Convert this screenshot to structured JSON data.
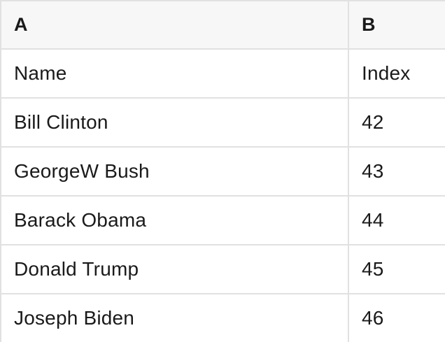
{
  "table": {
    "columns": [
      {
        "id": "A",
        "header": "A"
      },
      {
        "id": "B",
        "header": "B"
      }
    ],
    "rows": [
      [
        "Name",
        "Index"
      ],
      [
        "Bill Clinton",
        "42"
      ],
      [
        "GeorgeW Bush",
        "43"
      ],
      [
        "Barack Obama",
        "44"
      ],
      [
        "Donald Trump",
        "45"
      ],
      [
        "Joseph Biden",
        "46"
      ]
    ]
  },
  "colors": {
    "header_bg": "#f7f7f7",
    "border": "#e1e1e1",
    "text": "#1a1a1a",
    "row_bg": "#ffffff"
  }
}
